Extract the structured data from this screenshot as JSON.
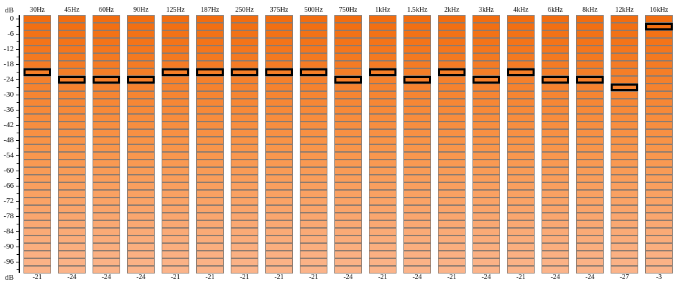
{
  "axis": {
    "unit_top": "dB",
    "unit_bottom": "dB",
    "min_db": -99,
    "max_db": 0,
    "step_db": 3,
    "tick_labels": [
      "0",
      "-6",
      "-12",
      "-18",
      "-24",
      "-30",
      "-36",
      "-42",
      "-48",
      "-54",
      "-60",
      "-66",
      "-72",
      "-78",
      "-84",
      "-90",
      "-96"
    ]
  },
  "colors": {
    "top": "#f26d0f",
    "middle": "#f99448",
    "bottom": "#fbb48a",
    "cell_border": "#8c7b70",
    "selected_border": "#000000"
  },
  "bands": [
    {
      "label": "30Hz",
      "value": -21,
      "value_text": "-21"
    },
    {
      "label": "45Hz",
      "value": -24,
      "value_text": "-24"
    },
    {
      "label": "60Hz",
      "value": -24,
      "value_text": "-24"
    },
    {
      "label": "90Hz",
      "value": -24,
      "value_text": "-24"
    },
    {
      "label": "125Hz",
      "value": -21,
      "value_text": "-21"
    },
    {
      "label": "187Hz",
      "value": -21,
      "value_text": "-21"
    },
    {
      "label": "250Hz",
      "value": -21,
      "value_text": "-21"
    },
    {
      "label": "375Hz",
      "value": -21,
      "value_text": "-21"
    },
    {
      "label": "500Hz",
      "value": -21,
      "value_text": "-21"
    },
    {
      "label": "750Hz",
      "value": -24,
      "value_text": "-24"
    },
    {
      "label": "1kHz",
      "value": -21,
      "value_text": "-21"
    },
    {
      "label": "1.5kHz",
      "value": -24,
      "value_text": "-24"
    },
    {
      "label": "2kHz",
      "value": -21,
      "value_text": "-21"
    },
    {
      "label": "3kHz",
      "value": -24,
      "value_text": "-24"
    },
    {
      "label": "4kHz",
      "value": -21,
      "value_text": "-21"
    },
    {
      "label": "6kHz",
      "value": -24,
      "value_text": "-24"
    },
    {
      "label": "8kHz",
      "value": -24,
      "value_text": "-24"
    },
    {
      "label": "12kHz",
      "value": -27,
      "value_text": "-27"
    },
    {
      "label": "16kHz",
      "value": -3,
      "value_text": "-3"
    }
  ]
}
